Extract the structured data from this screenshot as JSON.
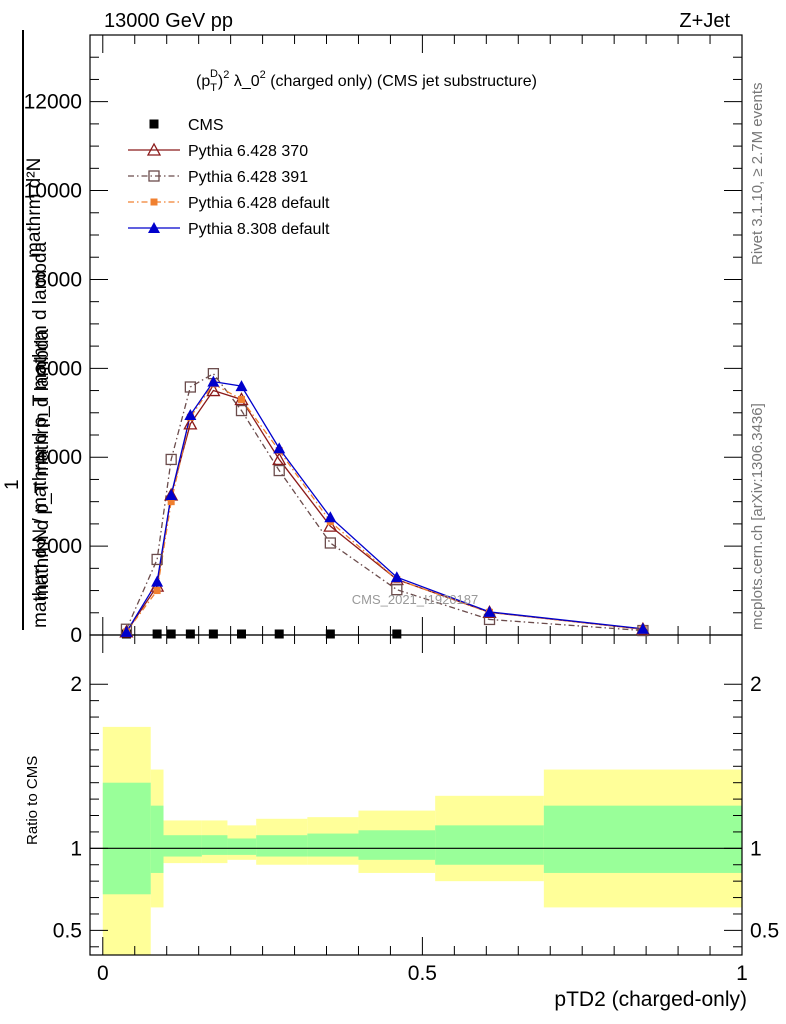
{
  "header": {
    "left": "13000 GeV pp",
    "right": "Z+Jet"
  },
  "plot_title": {
    "base": "(p",
    "sup1": "D",
    "sub1": "T",
    "mid": ")",
    "sup2": "2",
    "rest1": " λ_0",
    "sup3": "2",
    "rest2": " (charged only) (CMS jet substructure)"
  },
  "side_text": {
    "top": "Rivet 3.1.10, ≥ 2.7M events",
    "bottom": "mcplots.cern.ch [arXiv:1306.3436]"
  },
  "watermark": "CMS_2021_I1920187",
  "y_axis_label": {
    "numerator": "mathrm d²N",
    "fraction_one": "1",
    "denominator_upper": "mathrm d p_T mathrm d lambda",
    "denominator_lower": "mathrm d N / mathrm d p mathrm d p",
    "full_upper": "mathrm d p_T mathrm d lambda",
    "full_lower": "mathrm d N / mathrm d p_T mathrm d lambda"
  },
  "ratio_label": "Ratio to CMS",
  "x_axis_label": "pTD2 (charged-only)",
  "colors": {
    "cms": "#000000",
    "py6_370": "#8b1a1a",
    "py6_391": "#6b4c4c",
    "py6_default": "#f08030",
    "py8_default": "#0000cc",
    "band_inner": "#99ff99",
    "band_outer": "#ffff99"
  },
  "chart_data": {
    "type": "line",
    "x_label": "pTD2 (charged-only)",
    "xlim": [
      -0.02,
      1.0
    ],
    "main": {
      "ylim": [
        0,
        13500
      ],
      "y_ticks": [
        0,
        2000,
        4000,
        6000,
        8000,
        10000,
        12000
      ],
      "y_tick_labels": [
        "0",
        "2000",
        "4000",
        "6000",
        "8000",
        "10000",
        "12000"
      ]
    },
    "ratio": {
      "ylim": [
        0.35,
        2.3
      ],
      "y_ticks": [
        0.5,
        1,
        2
      ],
      "y_tick_labels": [
        "0.5",
        "1",
        "2"
      ]
    },
    "x_tick_labels": [
      "0",
      "0.5",
      "1"
    ],
    "x_ticks": [
      0,
      0.5,
      1
    ],
    "bins": [
      0.0,
      0.075,
      0.095,
      0.12,
      0.155,
      0.195,
      0.24,
      0.32,
      0.4,
      0.52,
      0.69,
      1.0
    ],
    "series": [
      {
        "name": "CMS",
        "marker": "square",
        "x": [
          0.037,
          0.085,
          0.107,
          0.137,
          0.173,
          0.217,
          0.276,
          0.356,
          0.46,
          0.605,
          0.845
        ],
        "y": [
          20,
          20,
          20,
          20,
          20,
          20,
          20,
          20,
          20,
          0,
          0
        ]
      },
      {
        "name": "Pythia 6.428 370",
        "marker": "triangle-open",
        "dash": "",
        "x": [
          0.037,
          0.085,
          0.107,
          0.137,
          0.173,
          0.217,
          0.276,
          0.356,
          0.46,
          0.605,
          0.845
        ],
        "y": [
          70,
          1100,
          3150,
          4750,
          5500,
          5300,
          3950,
          2450,
          1250,
          510,
          130
        ]
      },
      {
        "name": "Pythia 6.428 391",
        "marker": "square-open",
        "dash": "6,3,1.5,3",
        "x": [
          0.037,
          0.085,
          0.107,
          0.137,
          0.173,
          0.217,
          0.276,
          0.356,
          0.46,
          0.605,
          0.845
        ],
        "y": [
          130,
          1700,
          3950,
          5580,
          5880,
          5050,
          3700,
          2070,
          1020,
          350,
          100
        ]
      },
      {
        "name": "Pythia 6.428 default",
        "marker": "square-filled",
        "dash": "6,3,1.5,3",
        "x": [
          0.037,
          0.085,
          0.107,
          0.137,
          0.173,
          0.217,
          0.276,
          0.356,
          0.46,
          0.605,
          0.845
        ],
        "y": [
          70,
          1000,
          3000,
          4900,
          5650,
          5300,
          4150,
          2550,
          1250,
          510,
          130
        ]
      },
      {
        "name": "Pythia 8.308 default",
        "marker": "triangle-filled",
        "dash": "",
        "x": [
          0.037,
          0.085,
          0.107,
          0.137,
          0.173,
          0.217,
          0.276,
          0.356,
          0.46,
          0.605,
          0.845
        ],
        "y": [
          70,
          1200,
          3150,
          4950,
          5700,
          5600,
          4200,
          2650,
          1300,
          520,
          140
        ]
      }
    ],
    "ratio_bands": {
      "inner": [
        [
          0.72,
          1.4
        ],
        [
          0.85,
          1.26
        ],
        [
          0.95,
          1.08
        ],
        [
          0.95,
          1.08
        ],
        [
          0.96,
          1.08
        ],
        [
          0.96,
          1.06
        ],
        [
          0.95,
          1.08
        ],
        [
          0.95,
          1.09
        ],
        [
          0.93,
          1.11
        ],
        [
          0.9,
          1.14
        ],
        [
          0.85,
          1.26
        ]
      ],
      "outer": [
        [
          0.3,
          1.74
        ],
        [
          0.64,
          1.48
        ],
        [
          0.91,
          1.17
        ],
        [
          0.91,
          1.17
        ],
        [
          0.91,
          1.17
        ],
        [
          0.93,
          1.14
        ],
        [
          0.9,
          1.18
        ],
        [
          0.9,
          1.19
        ],
        [
          0.85,
          1.23
        ],
        [
          0.8,
          1.32
        ],
        [
          0.64,
          1.48
        ]
      ]
    },
    "grid": false,
    "legend_position": "top-left"
  }
}
